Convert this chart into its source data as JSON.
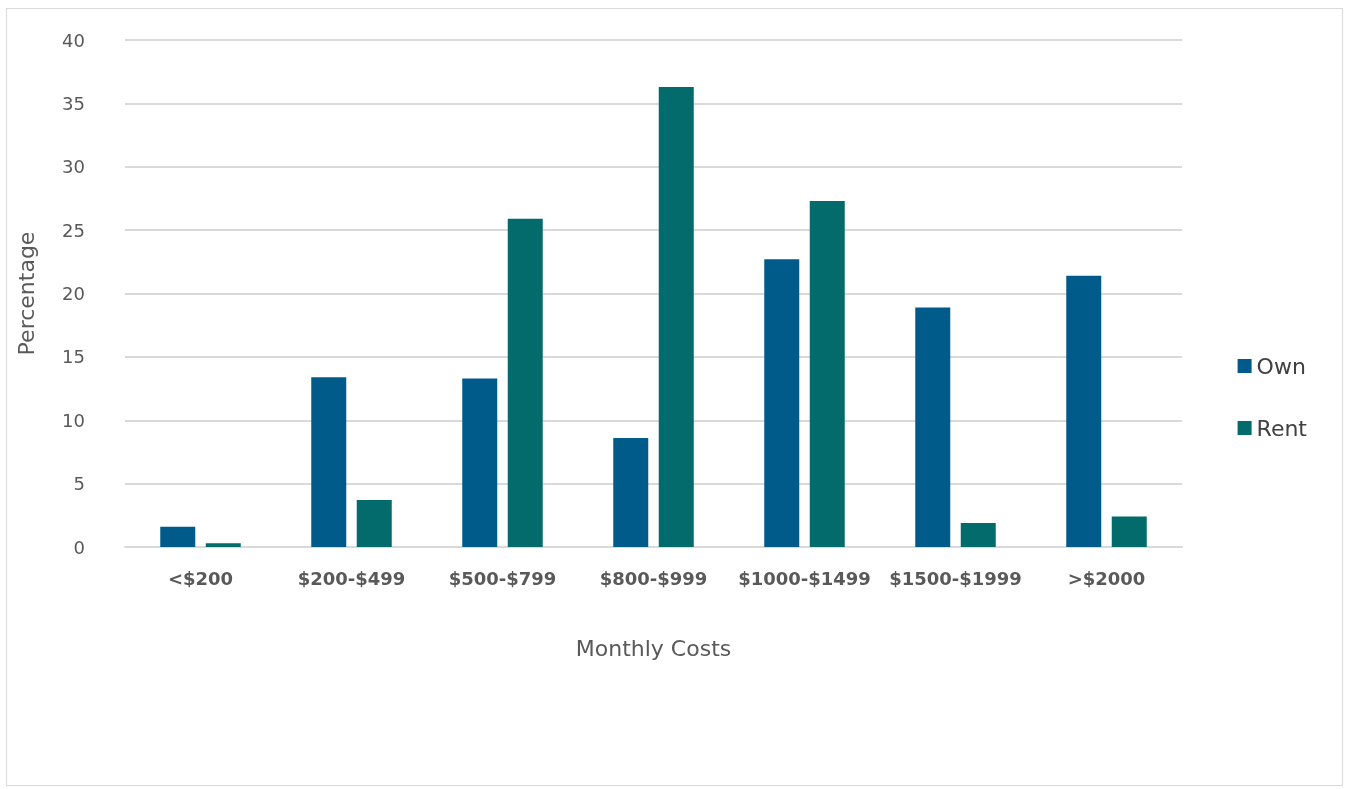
{
  "chart_data": {
    "type": "bar",
    "xlabel": "Monthly Costs",
    "ylabel": "Percentage",
    "categories": [
      "<$200",
      "$200-$499",
      "$500-$799",
      "$800-$999",
      "$1000-$1499",
      "$1500-$1999",
      ">$2000"
    ],
    "series": [
      {
        "name": "Own",
        "color": "#005b8a",
        "values": [
          1.6,
          13.4,
          13.3,
          8.6,
          22.7,
          18.9,
          21.4
        ]
      },
      {
        "name": "Rent",
        "color": "#036b6b",
        "values": [
          0.3,
          3.7,
          25.9,
          36.3,
          27.3,
          1.9,
          2.4
        ]
      }
    ],
    "ylim": [
      0,
      40
    ],
    "yticks": [
      0,
      5,
      10,
      15,
      20,
      25,
      30,
      35,
      40
    ],
    "grid": "y",
    "legend": "right"
  }
}
